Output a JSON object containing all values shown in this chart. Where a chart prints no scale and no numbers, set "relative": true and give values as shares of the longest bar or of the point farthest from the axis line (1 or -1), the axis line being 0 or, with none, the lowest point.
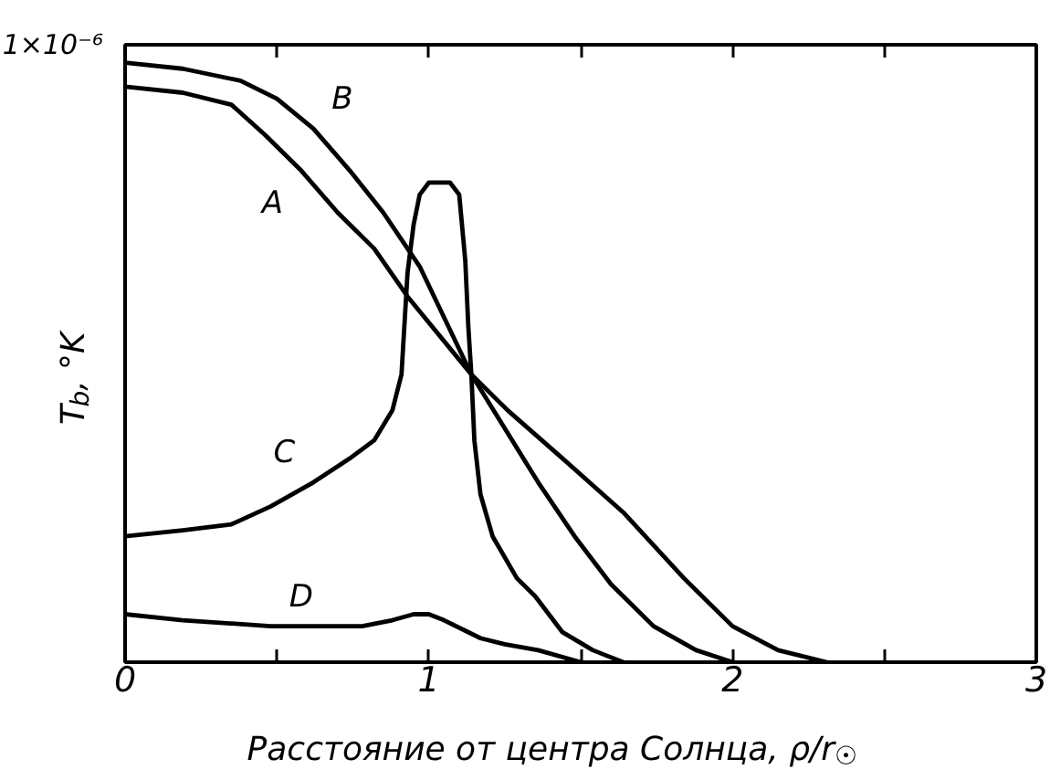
{
  "chart_data": {
    "type": "line",
    "relative": true,
    "xlabel": "Расстояние от центра Солнца, ρ/r$_{☉}$",
    "ylabel": "T$_{b}$, °K",
    "annotations": [
      "1×10⁻⁶"
    ],
    "xlim": [
      0,
      3
    ],
    "xticks": [
      0,
      {
        "value": 0.5,
        "label": null
      },
      1,
      {
        "value": 1.5,
        "label": null
      },
      2,
      {
        "value": 2.5,
        "label": null
      },
      3
    ],
    "grid": false,
    "tick_labels": "x",
    "series": [
      {
        "name": "A",
        "color": "#000000",
        "x": [
          0,
          0.19,
          0.35,
          0.46,
          0.58,
          0.7,
          0.82,
          0.93,
          1.14,
          1.26,
          1.44,
          1.64,
          1.84,
          2.0,
          2.15,
          2.31
        ],
        "values": [
          0.96,
          0.95,
          0.93,
          0.88,
          0.82,
          0.75,
          0.69,
          0.61,
          0.48,
          0.42,
          0.34,
          0.25,
          0.14,
          0.06,
          0.02,
          0.0
        ]
      },
      {
        "name": "B",
        "color": "#000000",
        "x": [
          0,
          0.19,
          0.38,
          0.5,
          0.62,
          0.74,
          0.85,
          0.97,
          1.14,
          1.25,
          1.36,
          1.48,
          1.6,
          1.74,
          1.88,
          2.0
        ],
        "values": [
          1.0,
          0.99,
          0.97,
          0.94,
          0.89,
          0.82,
          0.75,
          0.66,
          0.48,
          0.39,
          0.3,
          0.21,
          0.13,
          0.06,
          0.02,
          0.0
        ]
      },
      {
        "name": "C",
        "color": "#000000",
        "x": [
          0,
          0.19,
          0.35,
          0.48,
          0.62,
          0.74,
          0.82,
          0.88,
          0.91,
          0.93,
          0.95,
          0.97,
          1.0,
          1.07,
          1.1,
          1.12,
          1.13,
          1.14,
          1.15,
          1.17,
          1.21,
          1.29,
          1.35,
          1.44,
          1.54,
          1.64
        ],
        "values": [
          0.21,
          0.22,
          0.23,
          0.26,
          0.3,
          0.34,
          0.37,
          0.42,
          0.48,
          0.65,
          0.73,
          0.78,
          0.8,
          0.8,
          0.78,
          0.67,
          0.56,
          0.48,
          0.37,
          0.28,
          0.21,
          0.14,
          0.11,
          0.05,
          0.02,
          0.0
        ]
      },
      {
        "name": "D",
        "color": "#000000",
        "x": [
          0,
          0.19,
          0.48,
          0.78,
          0.88,
          0.95,
          1.0,
          1.05,
          1.17,
          1.25,
          1.36,
          1.5
        ],
        "values": [
          0.08,
          0.07,
          0.06,
          0.06,
          0.07,
          0.08,
          0.08,
          0.07,
          0.04,
          0.03,
          0.02,
          0.0
        ]
      }
    ]
  }
}
